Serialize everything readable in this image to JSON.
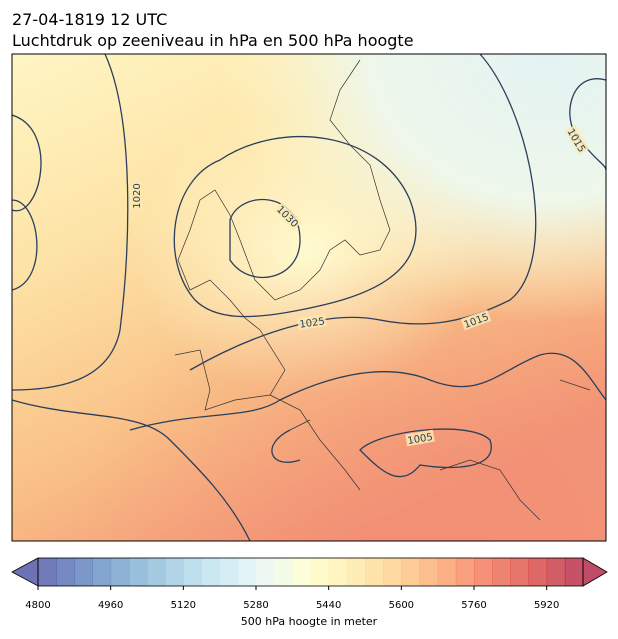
{
  "title": "27-04-1819 12 UTC",
  "subtitle": "Luchtdruk op zeeniveau in hPa en 500 hPa hoogte",
  "isobar_labels": [
    1015,
    1020,
    1030,
    1025,
    1015,
    1005
  ],
  "colorbar": {
    "label": "500 hPa hoogte in meter",
    "range": [
      4800,
      6000
    ],
    "step": 40,
    "ticks": [
      4800,
      4960,
      5120,
      5280,
      5440,
      5600,
      5760,
      5920
    ],
    "colormap": "RdYlBu_r"
  }
}
